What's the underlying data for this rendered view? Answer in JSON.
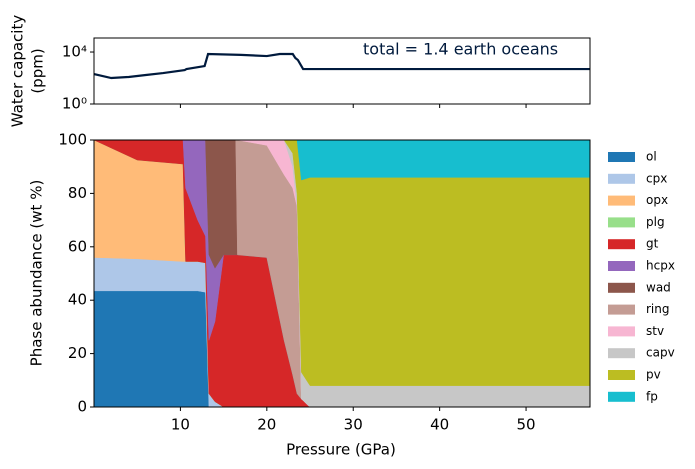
{
  "chart_data": [
    {
      "type": "line",
      "log_y": true,
      "ylabel_lines": [
        "Water capacity",
        "(ppm)"
      ],
      "annotation": "total = 1.4 earth oceans",
      "x": [
        0,
        2,
        4,
        6,
        8,
        10.5,
        10.7,
        12.8,
        13.2,
        17,
        20,
        21.5,
        23,
        23.3,
        23.6,
        24.2,
        57.4
      ],
      "series": [
        {
          "color": "#001a3d",
          "values": [
            200,
            100,
            120,
            170,
            240,
            410,
            490,
            830,
            7000,
            6000,
            4900,
            7000,
            7000,
            3500,
            2400,
            490,
            490
          ]
        }
      ],
      "xlim": [
        0,
        57.4
      ],
      "xticks": [
        10,
        20,
        30,
        40,
        50
      ],
      "ylim": [
        1,
        120000
      ],
      "yticks": [
        {
          "value": 1,
          "label": "10⁰"
        },
        {
          "value": 10000,
          "label": "10⁴"
        }
      ]
    },
    {
      "type": "stacked_area",
      "xlabel": "Pressure (GPa)",
      "ylabel": "Phase abundance (wt %)",
      "x": [
        0,
        5,
        10.3,
        10.6,
        12,
        12.9,
        13.3,
        14,
        15,
        16.4,
        16.6,
        20,
        22,
        23,
        23.5,
        24,
        25,
        57.4
      ],
      "series": [
        {
          "name": "ol",
          "color": "#1f77b4",
          "values": [
            43.5,
            43.5,
            43.5,
            43.5,
            43.5,
            43,
            0,
            0,
            0,
            0,
            0,
            0,
            0,
            0,
            0,
            0,
            0,
            0
          ]
        },
        {
          "name": "cpx",
          "color": "#aec7e8",
          "values": [
            12.5,
            12,
            11,
            11,
            11,
            11,
            5,
            2,
            0,
            0,
            0,
            0,
            0,
            0,
            0,
            0,
            0,
            0
          ]
        },
        {
          "name": "opx",
          "color": "#ffbb78",
          "values": [
            44,
            37,
            36.5,
            0,
            0,
            0,
            0,
            0,
            0,
            0,
            0,
            0,
            0,
            0,
            0,
            0,
            0,
            0
          ]
        },
        {
          "name": "plg",
          "color": "#98df8a",
          "values": [
            0,
            0,
            0,
            0,
            0,
            0,
            0,
            0,
            0,
            0,
            0,
            0,
            0,
            0,
            0,
            0,
            0,
            0
          ]
        },
        {
          "name": "gt",
          "color": "#d62728",
          "values": [
            0,
            7.5,
            9,
            27.5,
            15.5,
            10,
            20,
            30,
            57,
            57,
            57,
            56,
            25,
            12,
            5,
            3,
            0,
            0
          ]
        },
        {
          "name": "hcpx",
          "color": "#9467bd",
          "values": [
            0,
            0,
            0,
            18,
            30,
            36,
            32,
            20,
            0,
            0,
            0,
            0,
            0,
            0,
            0,
            0,
            0,
            0
          ]
        },
        {
          "name": "wad",
          "color": "#8c564b",
          "values": [
            0,
            0,
            0,
            0,
            0,
            0,
            43,
            48,
            43,
            43,
            0,
            0,
            0,
            0,
            0,
            0,
            0,
            0
          ]
        },
        {
          "name": "ring",
          "color": "#c49c94",
          "values": [
            0,
            0,
            0,
            0,
            0,
            0,
            0,
            0,
            0,
            0,
            43,
            42,
            62,
            70,
            70,
            0,
            0,
            0
          ]
        },
        {
          "name": "stv",
          "color": "#f7b6d2",
          "values": [
            0,
            0,
            0,
            0,
            0,
            0,
            0,
            0,
            0,
            0,
            0,
            2,
            13,
            8,
            0,
            0,
            0,
            0
          ]
        },
        {
          "name": "capv",
          "color": "#c7c7c7",
          "values": [
            0,
            0,
            0,
            0,
            0,
            0,
            0,
            0,
            0,
            0,
            0,
            0,
            0,
            5,
            5,
            10,
            8,
            8
          ]
        },
        {
          "name": "pv",
          "color": "#bcbd22",
          "values": [
            0,
            0,
            0,
            0,
            0,
            0,
            0,
            0,
            0,
            0,
            0,
            0,
            0,
            5,
            20,
            72,
            78,
            78
          ]
        },
        {
          "name": "fp",
          "color": "#17becf",
          "values": [
            0,
            0,
            0,
            0,
            0,
            0,
            0,
            0,
            0,
            0,
            0,
            0,
            0,
            0,
            0,
            15,
            14,
            14
          ]
        }
      ],
      "xlim": [
        0,
        57.4
      ],
      "xticks": [
        10,
        20,
        30,
        40,
        50
      ],
      "ylim": [
        0,
        100
      ],
      "yticks": [
        0,
        20,
        40,
        60,
        80,
        100
      ],
      "legend": "outside-right"
    }
  ]
}
